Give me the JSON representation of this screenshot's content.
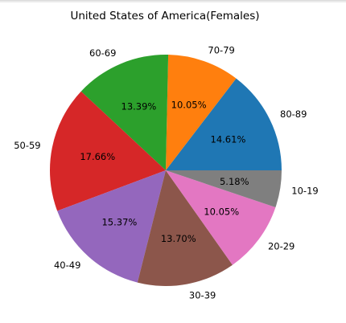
{
  "chart_data": {
    "type": "pie",
    "title": "United States of America(Females)",
    "slices": [
      {
        "label": "80-89",
        "value": 14.61,
        "pct_label": "14.61%",
        "color": "#1f77b4"
      },
      {
        "label": "70-79",
        "value": 10.05,
        "pct_label": "10.05%",
        "color": "#ff7f0e"
      },
      {
        "label": "60-69",
        "value": 13.39,
        "pct_label": "13.39%",
        "color": "#2ca02c"
      },
      {
        "label": "50-59",
        "value": 17.66,
        "pct_label": "17.66%",
        "color": "#d62728"
      },
      {
        "label": "40-49",
        "value": 15.37,
        "pct_label": "15.37%",
        "color": "#9467bd"
      },
      {
        "label": "30-39",
        "value": 13.7,
        "pct_label": "13.70%",
        "color": "#8c564b"
      },
      {
        "label": "20-29",
        "value": 10.05,
        "pct_label": "10.05%",
        "color": "#e377c2"
      },
      {
        "label": "10-19",
        "value": 5.18,
        "pct_label": "5.18%",
        "color": "#7f7f7f"
      }
    ],
    "start_angle_deg": 0,
    "direction": "counterclockwise",
    "legend": "none"
  }
}
